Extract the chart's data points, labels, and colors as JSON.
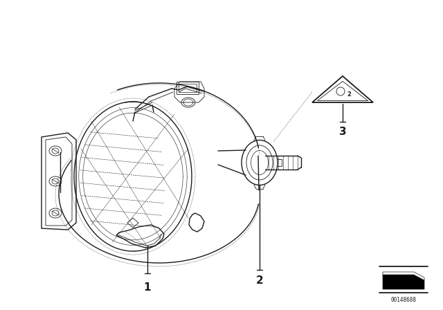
{
  "bg_color": "#ffffff",
  "line_color": "#1a1a1a",
  "label_1": "1",
  "label_2": "2",
  "label_3": "3",
  "catalog_number": "00148688",
  "fig_width": 6.4,
  "fig_height": 4.48,
  "dpi": 100
}
